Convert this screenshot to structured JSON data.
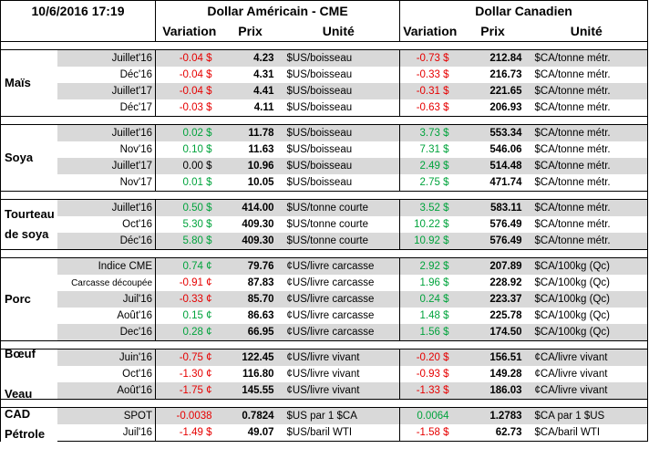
{
  "header": {
    "datetime": "10/6/2016 17:19",
    "usd_title": "Dollar Américain - CME",
    "cad_title": "Dollar Canadien",
    "col_variation": "Variation",
    "col_prix": "Prix",
    "col_unite": "Unité"
  },
  "groups": [
    {
      "label_lines": [
        "Maïs"
      ],
      "rows": [
        {
          "contract": "Juillet'16",
          "usd_var": "-0.04 $",
          "usd_prix": "4.23",
          "usd_unit": "$US/boisseau",
          "cad_var": "-0.73 $",
          "cad_prix": "212.84",
          "cad_unit": "$CA/tonne métr."
        },
        {
          "contract": "Déc'16",
          "usd_var": "-0.04 $",
          "usd_prix": "4.31",
          "usd_unit": "$US/boisseau",
          "cad_var": "-0.33 $",
          "cad_prix": "216.73",
          "cad_unit": "$CA/tonne métr."
        },
        {
          "contract": "Juillet'17",
          "usd_var": "-0.04 $",
          "usd_prix": "4.41",
          "usd_unit": "$US/boisseau",
          "cad_var": "-0.31 $",
          "cad_prix": "221.65",
          "cad_unit": "$CA/tonne métr."
        },
        {
          "contract": "Déc'17",
          "usd_var": "-0.03 $",
          "usd_prix": "4.11",
          "usd_unit": "$US/boisseau",
          "cad_var": "-0.63 $",
          "cad_prix": "206.93",
          "cad_unit": "$CA/tonne métr."
        }
      ]
    },
    {
      "label_lines": [
        "Soya"
      ],
      "rows": [
        {
          "contract": "Juillet'16",
          "usd_var": "0.02 $",
          "usd_prix": "11.78",
          "usd_unit": "$US/boisseau",
          "cad_var": "3.73 $",
          "cad_prix": "553.34",
          "cad_unit": "$CA/tonne métr."
        },
        {
          "contract": "Nov'16",
          "usd_var": "0.10 $",
          "usd_prix": "11.63",
          "usd_unit": "$US/boisseau",
          "cad_var": "7.31 $",
          "cad_prix": "546.06",
          "cad_unit": "$CA/tonne métr."
        },
        {
          "contract": "Juillet'17",
          "usd_var": "0.00 $",
          "usd_prix": "10.96",
          "usd_unit": "$US/boisseau",
          "cad_var": "2.49 $",
          "cad_prix": "514.48",
          "cad_unit": "$CA/tonne métr."
        },
        {
          "contract": "Nov'17",
          "usd_var": "0.01 $",
          "usd_prix": "10.05",
          "usd_unit": "$US/boisseau",
          "cad_var": "2.75 $",
          "cad_prix": "471.74",
          "cad_unit": "$CA/tonne métr."
        }
      ]
    },
    {
      "label_lines": [
        "Tourteau",
        "de soya"
      ],
      "rows": [
        {
          "contract": "Juillet'16",
          "usd_var": "0.50 $",
          "usd_prix": "414.00",
          "usd_unit": "$US/tonne courte",
          "cad_var": "3.52 $",
          "cad_prix": "583.11",
          "cad_unit": "$CA/tonne métr."
        },
        {
          "contract": "Oct'16",
          "usd_var": "5.30 $",
          "usd_prix": "409.30",
          "usd_unit": "$US/tonne courte",
          "cad_var": "10.22 $",
          "cad_prix": "576.49",
          "cad_unit": "$CA/tonne métr."
        },
        {
          "contract": "Déc'16",
          "usd_var": "5.80 $",
          "usd_prix": "409.30",
          "usd_unit": "$US/tonne courte",
          "cad_var": "10.92 $",
          "cad_prix": "576.49",
          "cad_unit": "$CA/tonne métr."
        }
      ]
    },
    {
      "label_lines": [
        "Porc"
      ],
      "rows": [
        {
          "contract": "Indice CME",
          "usd_var": "0.74 ¢",
          "usd_prix": "79.76",
          "usd_unit": "¢US/livre carcasse",
          "cad_var": "2.92 $",
          "cad_prix": "207.89",
          "cad_unit": "$CA/100kg (Qc)"
        },
        {
          "contract": "Carcasse découpée",
          "usd_var": "-0.91 ¢",
          "usd_prix": "87.83",
          "usd_unit": "¢US/livre carcasse",
          "cad_var": "1.96 $",
          "cad_prix": "228.92",
          "cad_unit": "$CA/100kg (Qc)"
        },
        {
          "contract": "Juil'16",
          "usd_var": "-0.33 ¢",
          "usd_prix": "85.70",
          "usd_unit": "¢US/livre carcasse",
          "cad_var": "0.24 $",
          "cad_prix": "223.37",
          "cad_unit": "$CA/100kg (Qc)"
        },
        {
          "contract": "Août'16",
          "usd_var": "0.15 ¢",
          "usd_prix": "86.63",
          "usd_unit": "¢US/livre carcasse",
          "cad_var": "1.48 $",
          "cad_prix": "225.78",
          "cad_unit": "$CA/100kg (Qc)"
        },
        {
          "contract": "Dec'16",
          "usd_var": "0.28 ¢",
          "usd_prix": "66.95",
          "usd_unit": "¢US/livre carcasse",
          "cad_var": "1.56 $",
          "cad_prix": "174.50",
          "cad_unit": "$CA/100kg (Qc)"
        }
      ]
    },
    {
      "label_lines": [
        "Bœuf",
        "",
        "Veau"
      ],
      "rows": [
        {
          "contract": "Juin'16",
          "usd_var": "-0.75 ¢",
          "usd_prix": "122.45",
          "usd_unit": "¢US/livre vivant",
          "cad_var": "-0.20 $",
          "cad_prix": "156.51",
          "cad_unit": "¢CA/livre vivant"
        },
        {
          "contract": "Oct'16",
          "usd_var": "-1.30 ¢",
          "usd_prix": "116.80",
          "usd_unit": "¢US/livre vivant",
          "cad_var": "-0.93 $",
          "cad_prix": "149.28",
          "cad_unit": "¢CA/livre vivant"
        },
        {
          "contract": "Août'16",
          "usd_var": "-1.75 ¢",
          "usd_prix": "145.55",
          "usd_unit": "¢US/livre vivant",
          "cad_var": "-1.33 $",
          "cad_prix": "186.03",
          "cad_unit": "¢CA/livre vivant"
        }
      ]
    },
    {
      "label_lines": [
        "CAD",
        "Pétrole"
      ],
      "rows": [
        {
          "contract": "SPOT",
          "usd_var": "-0.0038",
          "usd_prix": "0.7824",
          "usd_unit": "$US par 1 $CA",
          "cad_var": "0.0064",
          "cad_prix": "1.2783",
          "cad_unit": "$CA par 1 $US"
        },
        {
          "contract": "Juil'16",
          "usd_var": "-1.49 $",
          "usd_prix": "49.07",
          "usd_unit": "$US/baril WTI",
          "cad_var": "-1.58 $",
          "cad_prix": "62.73",
          "cad_unit": "$CA/baril WTI"
        }
      ]
    }
  ]
}
